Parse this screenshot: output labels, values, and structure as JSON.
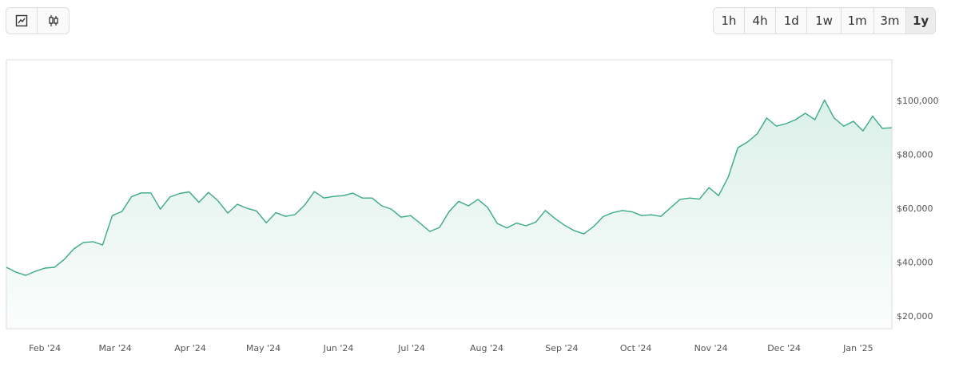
{
  "ui": {
    "range_buttons": [
      "1h",
      "4h",
      "1d",
      "1w",
      "1m",
      "3m",
      "1y"
    ],
    "active_range": 6
  },
  "chart_data": {
    "type": "area",
    "color": "#3aa987",
    "grid": false,
    "values": [
      38400,
      36600,
      35400,
      36900,
      38100,
      38400,
      41300,
      45200,
      47600,
      47900,
      46700,
      57600,
      59100,
      64600,
      66000,
      66000,
      60000,
      64500,
      65800,
      66400,
      62500,
      66200,
      63000,
      58500,
      61800,
      60300,
      59300,
      54900,
      58700,
      57300,
      58000,
      61500,
      66500,
      64100,
      64700,
      65000,
      65900,
      64100,
      64100,
      61200,
      60000,
      57000,
      57600,
      54700,
      51700,
      53200,
      59100,
      62900,
      61200,
      63600,
      60600,
      54700,
      53000,
      54800,
      53800,
      55200,
      59500,
      56500,
      54000,
      52000,
      50800,
      53500,
      57200,
      58700,
      59500,
      59000,
      57600,
      57900,
      57300,
      60500,
      63600,
      64100,
      63700,
      68000,
      65000,
      71900,
      82800,
      84900,
      87900,
      93800,
      90800,
      91700,
      93200,
      95600,
      93200,
      100500,
      93800,
      90800,
      92600,
      89000,
      94500,
      90000,
      90200
    ],
    "xlim": [
      0,
      92
    ],
    "xticks": [
      {
        "value": 4,
        "label": "Feb '24"
      },
      {
        "value": 11.3,
        "label": "Mar '24"
      },
      {
        "value": 19.1,
        "label": "Apr '24"
      },
      {
        "value": 26.7,
        "label": "May '24"
      },
      {
        "value": 34.5,
        "label": "Jun '24"
      },
      {
        "value": 42.1,
        "label": "Jul '24"
      },
      {
        "value": 49.9,
        "label": "Aug '24"
      },
      {
        "value": 57.7,
        "label": "Sep '24"
      },
      {
        "value": 65.4,
        "label": "Oct '24"
      },
      {
        "value": 73.2,
        "label": "Nov '24"
      },
      {
        "value": 80.8,
        "label": "Dec '24"
      },
      {
        "value": 88.5,
        "label": "Jan '25"
      }
    ],
    "ylim": [
      15600,
      115400
    ],
    "yticks": [
      {
        "value": 20000,
        "label": "$20,000"
      },
      {
        "value": 40000,
        "label": "$40,000"
      },
      {
        "value": 60000,
        "label": "$60,000"
      },
      {
        "value": 80000,
        "label": "$80,000"
      },
      {
        "value": 100000,
        "label": "$100,000"
      }
    ]
  }
}
